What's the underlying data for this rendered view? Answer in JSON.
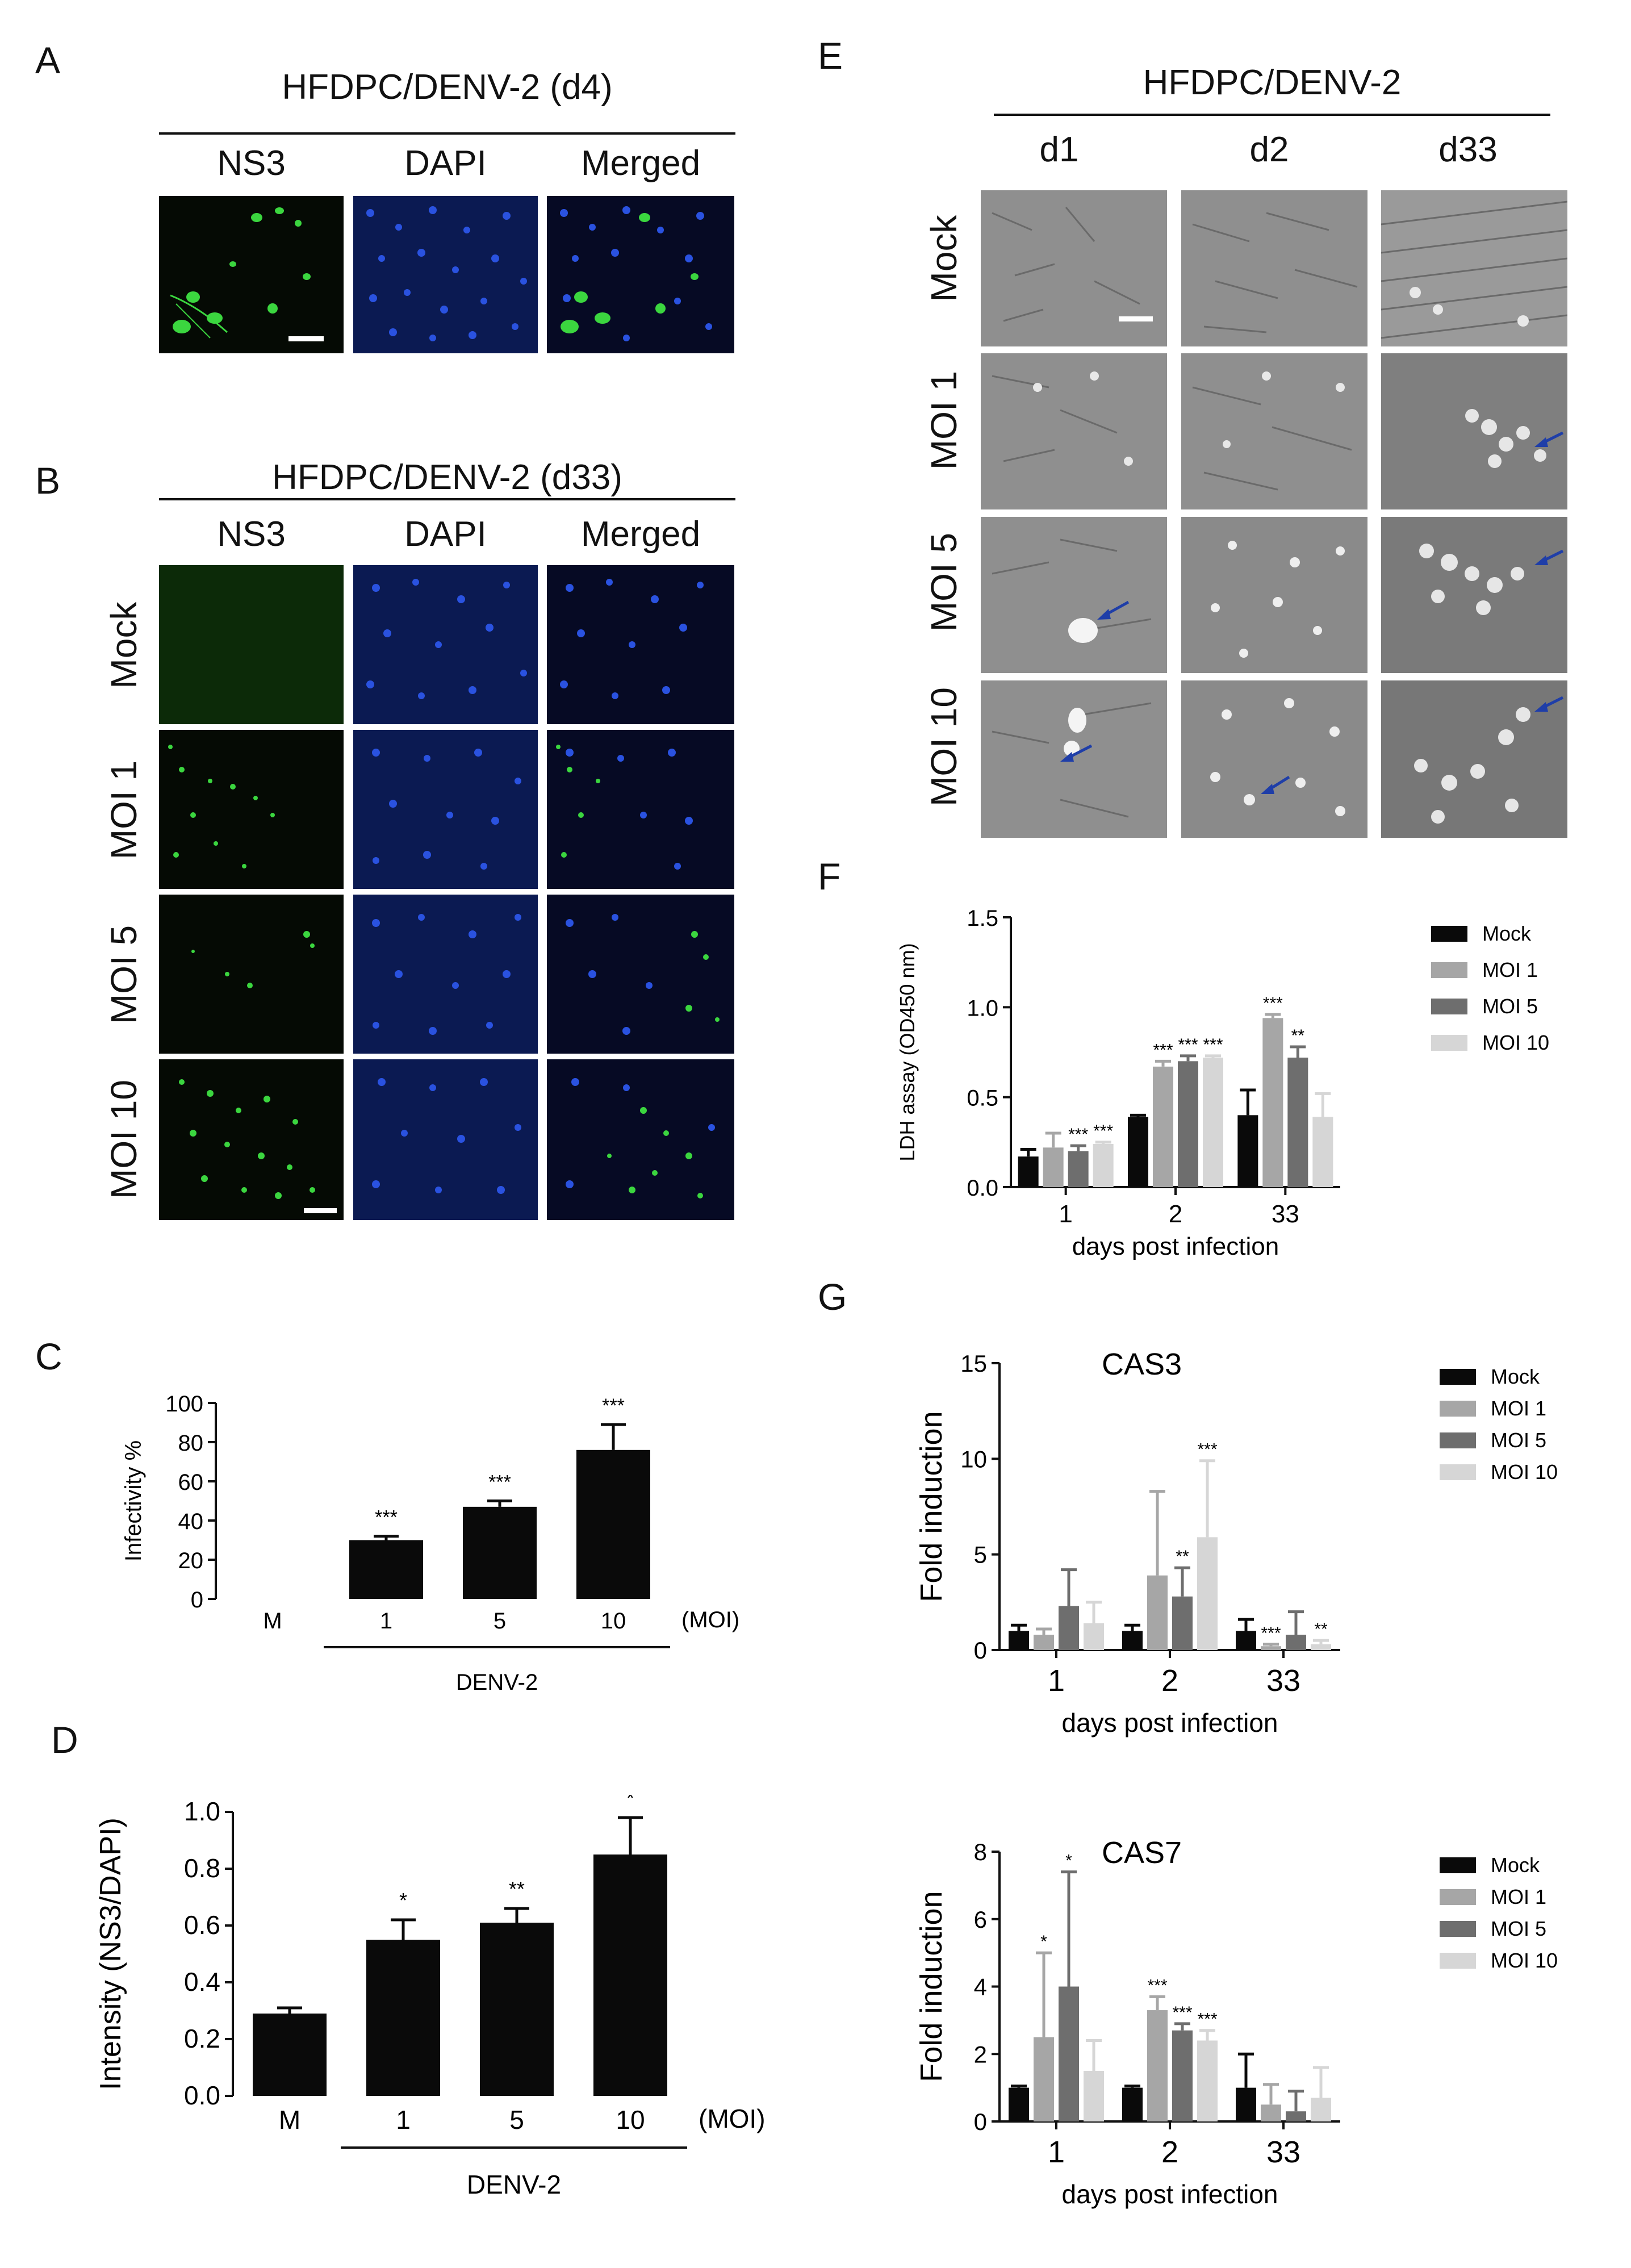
{
  "panels": {
    "A": {
      "label": "A",
      "header": "HFDPC/DENV-2  (d4)",
      "columns": [
        "NS3",
        "DAPI",
        "Merged"
      ]
    },
    "B": {
      "label": "B",
      "header": "HFDPC/DENV-2  (d33)",
      "columns": [
        "NS3",
        "DAPI",
        "Merged"
      ],
      "rows": [
        "Mock",
        "MOI 1",
        "MOI 5",
        "MOI 10"
      ]
    },
    "C": {
      "label": "C"
    },
    "D": {
      "label": "D"
    },
    "E": {
      "label": "E",
      "header": "HFDPC/DENV-2",
      "columns": [
        "d1",
        "d2",
        "d33"
      ],
      "rows": [
        "Mock",
        "MOI 1",
        "MOI 5",
        "MOI 10"
      ]
    },
    "F": {
      "label": "F"
    },
    "G": {
      "label": "G"
    }
  },
  "colors": {
    "ns3_green": "#3bd63f",
    "dapi_blue": "#2a52e0",
    "arrow_blue": "#1f3ea8",
    "mock": "#0a0a0a",
    "moi1": "#a6a6a6",
    "moi5": "#6e6e6e",
    "moi10": "#d6d6d6"
  },
  "chart_data": [
    {
      "id": "C",
      "type": "bar",
      "categories": [
        "M",
        "1",
        "5",
        "10"
      ],
      "values": [
        0,
        30,
        47,
        76
      ],
      "errors": [
        0,
        2,
        3,
        13
      ],
      "significance": [
        "",
        "***",
        "***",
        "***"
      ],
      "ylabel": "Infectivity %",
      "ylim": [
        0,
        100
      ],
      "yticks": [
        "0",
        "20",
        "40",
        "60",
        "80",
        "100"
      ],
      "unit_label": "(MOI)",
      "group_label": "DENV-2"
    },
    {
      "id": "D",
      "type": "bar",
      "categories": [
        "M",
        "1",
        "5",
        "10"
      ],
      "values": [
        0.29,
        0.55,
        0.61,
        0.85
      ],
      "errors": [
        0.02,
        0.07,
        0.05,
        0.13
      ],
      "significance": [
        "",
        "*",
        "**",
        "*"
      ],
      "ylabel": "Intensity (NS3/DAPI)",
      "ylim": [
        0,
        1.0
      ],
      "yticks": [
        "0.0",
        "0.2",
        "0.4",
        "0.6",
        "0.8",
        "1.0"
      ],
      "unit_label": "(MOI)",
      "group_label": "DENV-2"
    },
    {
      "id": "F",
      "type": "bar",
      "categories": [
        "1",
        "2",
        "33"
      ],
      "xlabel": "days  post infection",
      "ylabel": "LDH assay (OD450 nm)",
      "ylim": [
        0,
        1.5
      ],
      "yticks": [
        "0.0",
        "0.5",
        "1.0",
        "1.5"
      ],
      "series": [
        {
          "name": "Mock",
          "values": [
            0.17,
            0.39,
            0.4
          ],
          "errors": [
            0.04,
            0.01,
            0.14
          ],
          "sig": [
            "",
            "",
            ""
          ]
        },
        {
          "name": "MOI 1",
          "values": [
            0.22,
            0.67,
            0.94
          ],
          "errors": [
            0.08,
            0.03,
            0.02
          ],
          "sig": [
            "",
            "***",
            "***"
          ]
        },
        {
          "name": "MOI 5",
          "values": [
            0.2,
            0.7,
            0.72
          ],
          "errors": [
            0.03,
            0.03,
            0.06
          ],
          "sig": [
            "***",
            "***",
            "**"
          ]
        },
        {
          "name": "MOI 10",
          "values": [
            0.24,
            0.72,
            0.39
          ],
          "errors": [
            0.01,
            0.01,
            0.13
          ],
          "sig": [
            "***",
            "***",
            ""
          ]
        }
      ]
    },
    {
      "id": "G-CAS3",
      "type": "bar",
      "title": "CAS3",
      "categories": [
        "1",
        "2",
        "33"
      ],
      "xlabel": "days  post infection",
      "ylabel": "Fold induction",
      "ylim": [
        0,
        15
      ],
      "yticks": [
        "0",
        "5",
        "10",
        "15"
      ],
      "series": [
        {
          "name": "Mock",
          "values": [
            1.0,
            1.0,
            1.0
          ],
          "errors": [
            0.3,
            0.3,
            0.6
          ],
          "sig": [
            "",
            "",
            ""
          ]
        },
        {
          "name": "MOI 1",
          "values": [
            0.8,
            3.9,
            0.2
          ],
          "errors": [
            0.3,
            4.4,
            0.1
          ],
          "sig": [
            "",
            "",
            "***"
          ]
        },
        {
          "name": "MOI 5",
          "values": [
            2.3,
            2.8,
            0.8
          ],
          "errors": [
            1.9,
            1.5,
            1.2
          ],
          "sig": [
            "",
            "**",
            ""
          ]
        },
        {
          "name": "MOI 10",
          "values": [
            1.4,
            5.9,
            0.3
          ],
          "errors": [
            1.1,
            4.0,
            0.2
          ],
          "sig": [
            "",
            "***",
            "**"
          ]
        }
      ]
    },
    {
      "id": "G-CAS7",
      "type": "bar",
      "title": "CAS7",
      "categories": [
        "1",
        "2",
        "33"
      ],
      "xlabel": "days  post infection",
      "ylabel": "Fold induction",
      "ylim": [
        0,
        8
      ],
      "yticks": [
        "0",
        "2",
        "4",
        "6",
        "8"
      ],
      "series": [
        {
          "name": "Mock",
          "values": [
            1.0,
            1.0,
            1.0
          ],
          "errors": [
            0.05,
            0.05,
            1.0
          ],
          "sig": [
            "",
            "",
            ""
          ]
        },
        {
          "name": "MOI 1",
          "values": [
            2.5,
            3.3,
            0.5
          ],
          "errors": [
            2.5,
            0.4,
            0.6
          ],
          "sig": [
            "*",
            "***",
            ""
          ]
        },
        {
          "name": "MOI 5",
          "values": [
            4.0,
            2.7,
            0.3
          ],
          "errors": [
            3.4,
            0.2,
            0.6
          ],
          "sig": [
            "*",
            "***",
            ""
          ]
        },
        {
          "name": "MOI 10",
          "values": [
            1.5,
            2.4,
            0.7
          ],
          "errors": [
            0.9,
            0.3,
            0.9
          ],
          "sig": [
            "",
            "***",
            ""
          ]
        }
      ]
    }
  ]
}
